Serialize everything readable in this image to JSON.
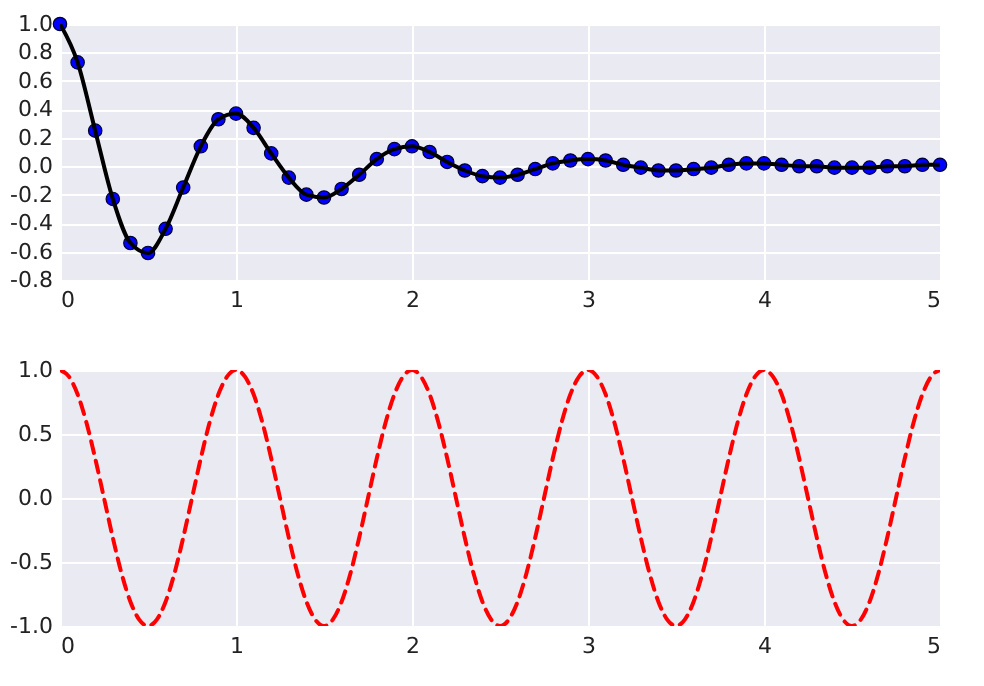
{
  "chart_data": [
    {
      "type": "line",
      "x": [
        0,
        0.1,
        0.2,
        0.3,
        0.4,
        0.5,
        0.6,
        0.7,
        0.8,
        0.9,
        1.0,
        1.1,
        1.2,
        1.3,
        1.4,
        1.5,
        1.6,
        1.7,
        1.8,
        1.9,
        2.0,
        2.1,
        2.2,
        2.3,
        2.4,
        2.5,
        2.6,
        2.7,
        2.8,
        2.9,
        3.0,
        3.1,
        3.2,
        3.3,
        3.4,
        3.5,
        3.6,
        3.7,
        3.8,
        3.9,
        4.0,
        4.1,
        4.2,
        4.3,
        4.4,
        4.5,
        4.6,
        4.7,
        4.8,
        4.9,
        5.0
      ],
      "series": [
        {
          "type": "scatter",
          "color": "#0000ff",
          "marker": "circle",
          "values": [
            1.0,
            0.73,
            0.25,
            -0.23,
            -0.54,
            -0.61,
            -0.44,
            -0.15,
            0.14,
            0.33,
            0.37,
            0.27,
            0.09,
            -0.08,
            -0.2,
            -0.22,
            -0.16,
            -0.06,
            0.05,
            0.12,
            0.14,
            0.1,
            0.03,
            -0.03,
            -0.07,
            -0.08,
            -0.06,
            -0.02,
            0.02,
            0.04,
            0.05,
            0.04,
            0.01,
            -0.01,
            -0.03,
            -0.03,
            -0.02,
            -0.01,
            0.01,
            0.02,
            0.02,
            0.01,
            0.0,
            0.0,
            -0.01,
            -0.01,
            -0.01,
            0.0,
            0.0,
            0.01,
            0.01
          ]
        },
        {
          "type": "line",
          "color": "#000000",
          "line_style": "solid",
          "values": [
            1.0,
            0.73,
            0.25,
            -0.23,
            -0.54,
            -0.61,
            -0.44,
            -0.15,
            0.14,
            0.33,
            0.37,
            0.27,
            0.09,
            -0.08,
            -0.2,
            -0.22,
            -0.16,
            -0.06,
            0.05,
            0.12,
            0.14,
            0.1,
            0.03,
            -0.03,
            -0.07,
            -0.08,
            -0.06,
            -0.02,
            0.02,
            0.04,
            0.05,
            0.04,
            0.01,
            -0.01,
            -0.03,
            -0.03,
            -0.02,
            -0.01,
            0.01,
            0.02,
            0.02,
            0.01,
            0.0,
            0.0,
            -0.01,
            -0.01,
            -0.01,
            0.0,
            0.0,
            0.01,
            0.01
          ]
        }
      ],
      "xlim": [
        0,
        5
      ],
      "xticks": [
        0,
        1,
        2,
        3,
        4,
        5
      ],
      "ylim": [
        -0.8,
        1.0
      ],
      "yticks": [
        {
          "value": -0.8,
          "label": "-0.8"
        },
        {
          "value": -0.6,
          "label": "-0.6"
        },
        {
          "value": -0.4,
          "label": "-0.4"
        },
        {
          "value": -0.2,
          "label": "-0.2"
        },
        {
          "value": 0,
          "label": "0.0"
        },
        {
          "value": 0.2,
          "label": "0.2"
        },
        {
          "value": 0.4,
          "label": "0.4"
        },
        {
          "value": 0.6,
          "label": "0.6"
        },
        {
          "value": 0.8,
          "label": "0.8"
        },
        {
          "value": 1.0,
          "label": "1.0"
        }
      ],
      "grid": true
    },
    {
      "type": "line",
      "x": [
        0,
        0.05,
        0.1,
        0.15,
        0.2,
        0.25,
        0.3,
        0.35,
        0.4,
        0.45,
        0.5,
        0.55,
        0.6,
        0.65,
        0.7,
        0.75,
        0.8,
        0.85,
        0.9,
        0.95,
        1.0,
        1.05,
        1.1,
        1.15,
        1.2,
        1.25,
        1.3,
        1.35,
        1.4,
        1.45,
        1.5,
        1.55,
        1.6,
        1.65,
        1.7,
        1.75,
        1.8,
        1.85,
        1.9,
        1.95,
        2.0,
        2.05,
        2.1,
        2.15,
        2.2,
        2.25,
        2.3,
        2.35,
        2.4,
        2.45,
        2.5,
        2.55,
        2.6,
        2.65,
        2.7,
        2.75,
        2.8,
        2.85,
        2.9,
        2.95,
        3.0,
        3.05,
        3.1,
        3.15,
        3.2,
        3.25,
        3.3,
        3.35,
        3.4,
        3.45,
        3.5,
        3.55,
        3.6,
        3.65,
        3.7,
        3.75,
        3.8,
        3.85,
        3.9,
        3.95,
        4.0,
        4.05,
        4.1,
        4.15,
        4.2,
        4.25,
        4.3,
        4.35,
        4.4,
        4.45,
        4.5,
        4.55,
        4.6,
        4.65,
        4.7,
        4.75,
        4.8,
        4.85,
        4.9,
        4.95,
        5.0
      ],
      "series": [
        {
          "type": "line",
          "color": "#ff0000",
          "line_style": "dashed",
          "values": [
            1,
            0.95,
            0.81,
            0.59,
            0.31,
            0,
            -0.31,
            -0.59,
            -0.81,
            -0.95,
            -1,
            -0.95,
            -0.81,
            -0.59,
            -0.31,
            0,
            0.31,
            0.59,
            0.81,
            0.95,
            1,
            0.95,
            0.81,
            0.59,
            0.31,
            0,
            -0.31,
            -0.59,
            -0.81,
            -0.95,
            -1,
            -0.95,
            -0.81,
            -0.59,
            -0.31,
            0,
            0.31,
            0.59,
            0.81,
            0.95,
            1,
            0.95,
            0.81,
            0.59,
            0.31,
            0,
            -0.31,
            -0.59,
            -0.81,
            -0.95,
            -1,
            -0.95,
            -0.81,
            -0.59,
            -0.31,
            0,
            0.31,
            0.59,
            0.81,
            0.95,
            1,
            0.95,
            0.81,
            0.59,
            0.31,
            0,
            -0.31,
            -0.59,
            -0.81,
            -0.95,
            -1,
            -0.95,
            -0.81,
            -0.59,
            -0.31,
            0,
            0.31,
            0.59,
            0.81,
            0.95,
            1,
            0.95,
            0.81,
            0.59,
            0.31,
            0,
            -0.31,
            -0.59,
            -0.81,
            -0.95,
            -1,
            -0.95,
            -0.81,
            -0.59,
            -0.31,
            0,
            0.31,
            0.59,
            0.81,
            0.95,
            1
          ]
        }
      ],
      "xlim": [
        0,
        5
      ],
      "xticks": [
        0,
        1,
        2,
        3,
        4,
        5
      ],
      "ylim": [
        -1.0,
        1.0
      ],
      "yticks": [
        {
          "value": -1.0,
          "label": "-1.0"
        },
        {
          "value": -0.5,
          "label": "-0.5"
        },
        {
          "value": 0,
          "label": "0.0"
        },
        {
          "value": 0.5,
          "label": "0.5"
        },
        {
          "value": 1.0,
          "label": "1.0"
        }
      ],
      "grid": true
    }
  ]
}
